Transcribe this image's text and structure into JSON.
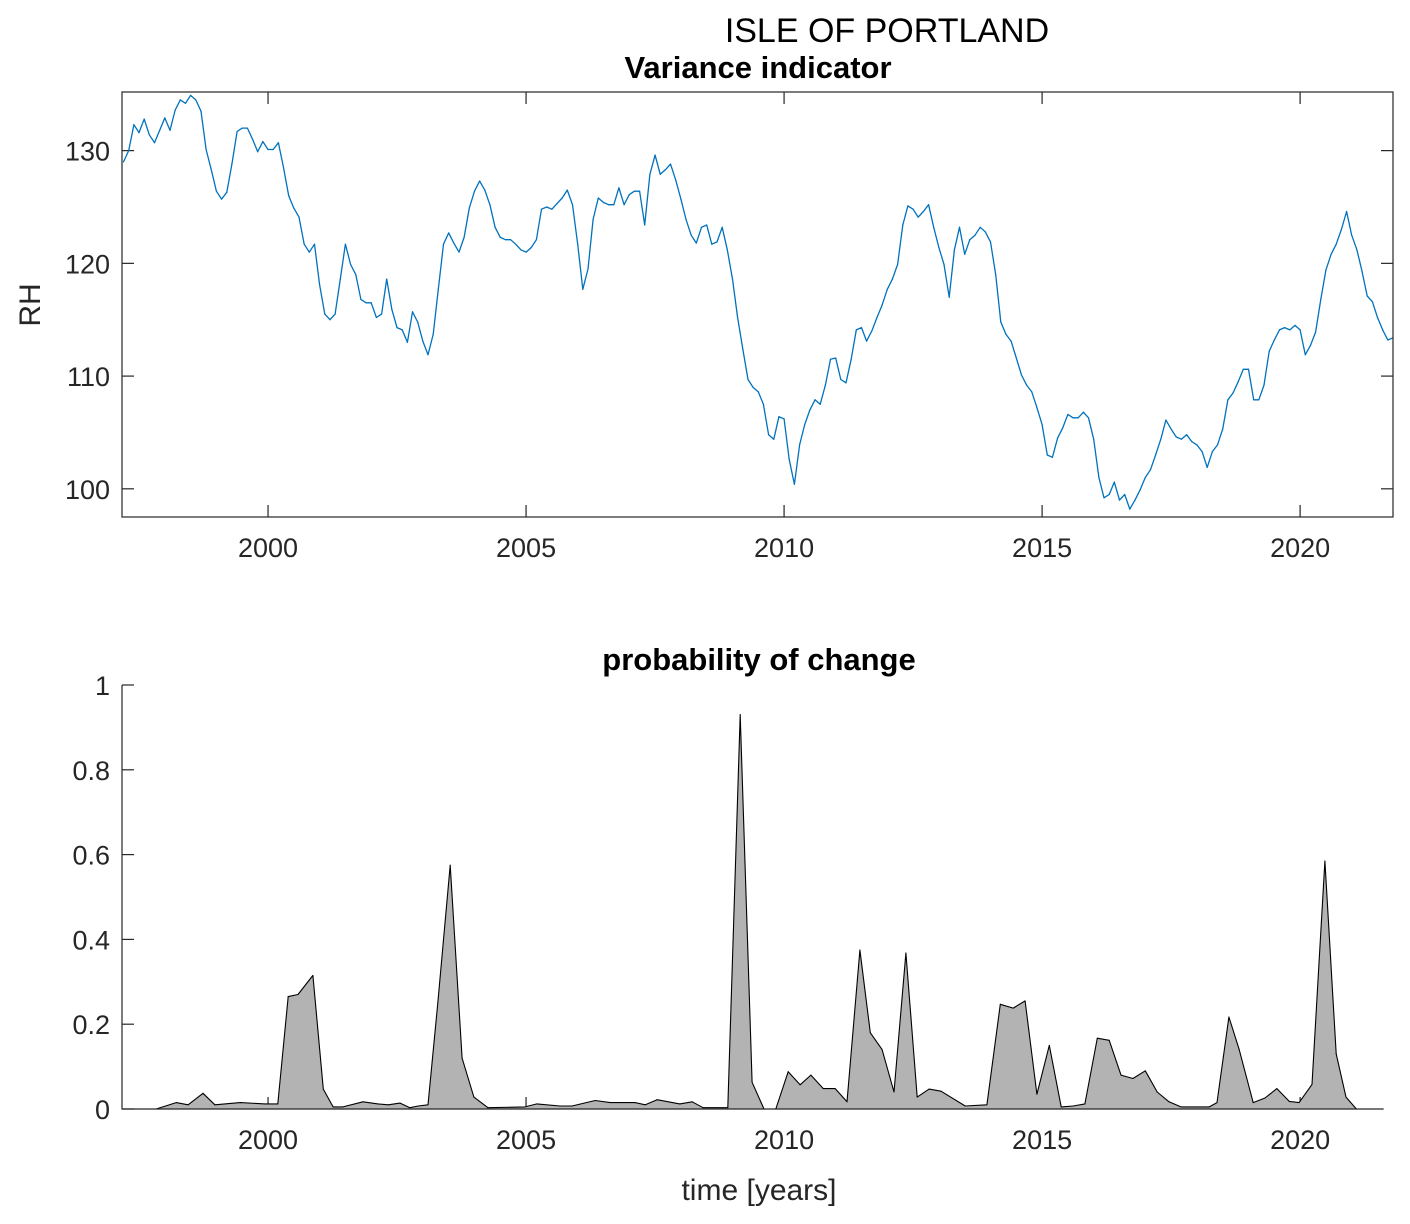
{
  "figure_title": "ISLE OF PORTLAND",
  "chart_data": [
    {
      "type": "line",
      "title": "Variance indicator",
      "xlabel": "",
      "ylabel": "RH",
      "xlim": [
        1997.17,
        2021.8
      ],
      "ylim": [
        97.5,
        135.2
      ],
      "xticks": [
        2000,
        2005,
        2010,
        2015,
        2020
      ],
      "xtick_labels": [
        "2000",
        "2005",
        "2010",
        "2015",
        "2020"
      ],
      "yticks": [
        100,
        110,
        120,
        130
      ],
      "ytick_labels": [
        "100",
        "110",
        "120",
        "130"
      ],
      "grid": false,
      "box": true,
      "color": "#0072BD",
      "series": [
        {
          "name": "RH",
          "x_start": 1997.2,
          "x_step": 0.1,
          "values": [
            129.0,
            130.0,
            132.3,
            131.6,
            132.8,
            131.4,
            130.7,
            131.8,
            132.9,
            131.8,
            133.6,
            134.5,
            134.2,
            134.9,
            134.5,
            133.5,
            130.1,
            128.3,
            126.4,
            125.7,
            126.3,
            128.8,
            131.7,
            132.0,
            132.0,
            131.0,
            129.9,
            130.8,
            130.1,
            130.1,
            130.7,
            128.5,
            126.0,
            124.9,
            124.1,
            121.7,
            121.0,
            121.7,
            118.1,
            115.5,
            115.0,
            115.5,
            118.6,
            121.7,
            119.9,
            119.0,
            116.8,
            116.5,
            116.5,
            115.2,
            115.5,
            118.6,
            115.9,
            114.3,
            114.1,
            113.0,
            115.7,
            114.8,
            113.1,
            111.9,
            113.7,
            117.7,
            121.7,
            122.7,
            121.8,
            121.0,
            122.3,
            124.9,
            126.4,
            127.3,
            126.5,
            125.2,
            123.2,
            122.3,
            122.1,
            122.1,
            121.7,
            121.2,
            121.0,
            121.4,
            122.1,
            124.8,
            125.0,
            124.8,
            125.3,
            125.8,
            126.5,
            125.2,
            121.7,
            117.7,
            119.5,
            123.9,
            125.8,
            125.4,
            125.2,
            125.2,
            126.7,
            125.2,
            126.1,
            126.4,
            126.4,
            123.4,
            127.9,
            129.6,
            127.9,
            128.3,
            128.8,
            127.4,
            125.7,
            123.9,
            122.5,
            121.8,
            123.2,
            123.4,
            121.7,
            121.9,
            123.2,
            121.2,
            118.6,
            115.2,
            112.4,
            109.7,
            109.0,
            108.6,
            107.5,
            104.8,
            104.4,
            106.4,
            106.2,
            102.6,
            100.4,
            103.9,
            105.7,
            107.0,
            107.9,
            107.5,
            109.2,
            111.5,
            111.6,
            109.7,
            109.4,
            111.5,
            114.1,
            114.3,
            113.1,
            114.0,
            115.2,
            116.3,
            117.7,
            118.6,
            119.9,
            123.4,
            125.1,
            124.8,
            124.1,
            124.6,
            125.2,
            123.2,
            121.4,
            119.9,
            117.0,
            121.2,
            123.2,
            120.8,
            122.1,
            122.5,
            123.2,
            122.8,
            121.9,
            119.0,
            114.8,
            113.7,
            113.1,
            111.6,
            110.1,
            109.2,
            108.6,
            107.2,
            105.7,
            103.0,
            102.8,
            104.5,
            105.4,
            106.6,
            106.3,
            106.3,
            106.8,
            106.3,
            104.4,
            101.0,
            99.2,
            99.5,
            100.6,
            99.0,
            99.5,
            98.2,
            99.0,
            99.9,
            101.0,
            101.7,
            103.0,
            104.4,
            106.1,
            105.3,
            104.6,
            104.4,
            104.8,
            104.2,
            103.9,
            103.3,
            101.9,
            103.3,
            103.9,
            105.3,
            107.9,
            108.5,
            109.5,
            110.6,
            110.6,
            107.9,
            107.9,
            109.2,
            112.2,
            113.2,
            114.1,
            114.3,
            114.1,
            114.5,
            114.1,
            111.9,
            112.7,
            113.9,
            116.8,
            119.4,
            120.8,
            121.7,
            123.0,
            124.6,
            122.5,
            121.2,
            119.3,
            117.1,
            116.6,
            115.2,
            114.1,
            113.2,
            113.4
          ]
        }
      ]
    },
    {
      "type": "area",
      "title": "probability of change",
      "xlabel": "time [years]",
      "ylabel": "",
      "xlim": [
        1997.17,
        2021.8
      ],
      "ylim": [
        0,
        1
      ],
      "xticks": [
        2000,
        2005,
        2010,
        2015,
        2020
      ],
      "xtick_labels": [
        "2000",
        "2005",
        "2010",
        "2015",
        "2020"
      ],
      "yticks": [
        0,
        0.2,
        0.4,
        0.6,
        0.8,
        1
      ],
      "ytick_labels": [
        "0",
        "0.2",
        "0.4",
        "0.6",
        "0.8",
        "1"
      ],
      "grid": false,
      "box": false,
      "fill_color": "#B3B3B3",
      "edge_color": "#000000",
      "series": [
        {
          "name": "probability",
          "x": [
            1997.17,
            1997.83,
            1998.22,
            1998.45,
            1998.74,
            1998.97,
            1999.46,
            1999.94,
            2000.19,
            2000.39,
            2000.58,
            2000.87,
            2001.07,
            2001.26,
            2001.45,
            2001.84,
            2002.13,
            2002.33,
            2002.56,
            2002.75,
            2002.91,
            2003.1,
            2003.29,
            2003.53,
            2003.76,
            2003.99,
            2004.26,
            2004.98,
            2005.21,
            2005.66,
            2005.89,
            2006.34,
            2006.63,
            2007.11,
            2007.31,
            2007.54,
            2007.98,
            2008.22,
            2008.43,
            2008.91,
            2009.15,
            2009.38,
            2009.61,
            2009.84,
            2010.08,
            2010.31,
            2010.52,
            2010.76,
            2010.99,
            2011.22,
            2011.47,
            2011.67,
            2011.9,
            2012.13,
            2012.36,
            2012.58,
            2012.81,
            2013.04,
            2013.51,
            2013.93,
            2014.19,
            2014.44,
            2014.67,
            2014.9,
            2015.14,
            2015.37,
            2015.6,
            2015.83,
            2016.07,
            2016.3,
            2016.53,
            2016.76,
            2017.0,
            2017.23,
            2017.46,
            2017.69,
            2018.24,
            2018.39,
            2018.62,
            2018.82,
            2019.09,
            2019.32,
            2019.55,
            2019.79,
            2019.98,
            2020.23,
            2020.48,
            2020.7,
            2020.89,
            2021.09,
            2021.61
          ],
          "values": [
            0,
            0,
            0.015,
            0.01,
            0.037,
            0.01,
            0.015,
            0.012,
            0.012,
            0.265,
            0.27,
            0.315,
            0.047,
            0.005,
            0.005,
            0.017,
            0.012,
            0.01,
            0.014,
            0.003,
            0.007,
            0.01,
            0.25,
            0.575,
            0.12,
            0.028,
            0.003,
            0.005,
            0.012,
            0.007,
            0.007,
            0.02,
            0.015,
            0.015,
            0.01,
            0.022,
            0.012,
            0.017,
            0.003,
            0.003,
            0.93,
            0.063,
            0,
            0,
            0.088,
            0.057,
            0.08,
            0.048,
            0.048,
            0.017,
            0.375,
            0.18,
            0.14,
            0.04,
            0.368,
            0.028,
            0.047,
            0.042,
            0.007,
            0.01,
            0.247,
            0.238,
            0.255,
            0.035,
            0.15,
            0.005,
            0.007,
            0.012,
            0.167,
            0.162,
            0.08,
            0.072,
            0.09,
            0.04,
            0.017,
            0.005,
            0.005,
            0.015,
            0.217,
            0.14,
            0.015,
            0.026,
            0.048,
            0.018,
            0.015,
            0.058,
            0.585,
            0.13,
            0.028,
            0,
            0
          ]
        }
      ]
    }
  ]
}
